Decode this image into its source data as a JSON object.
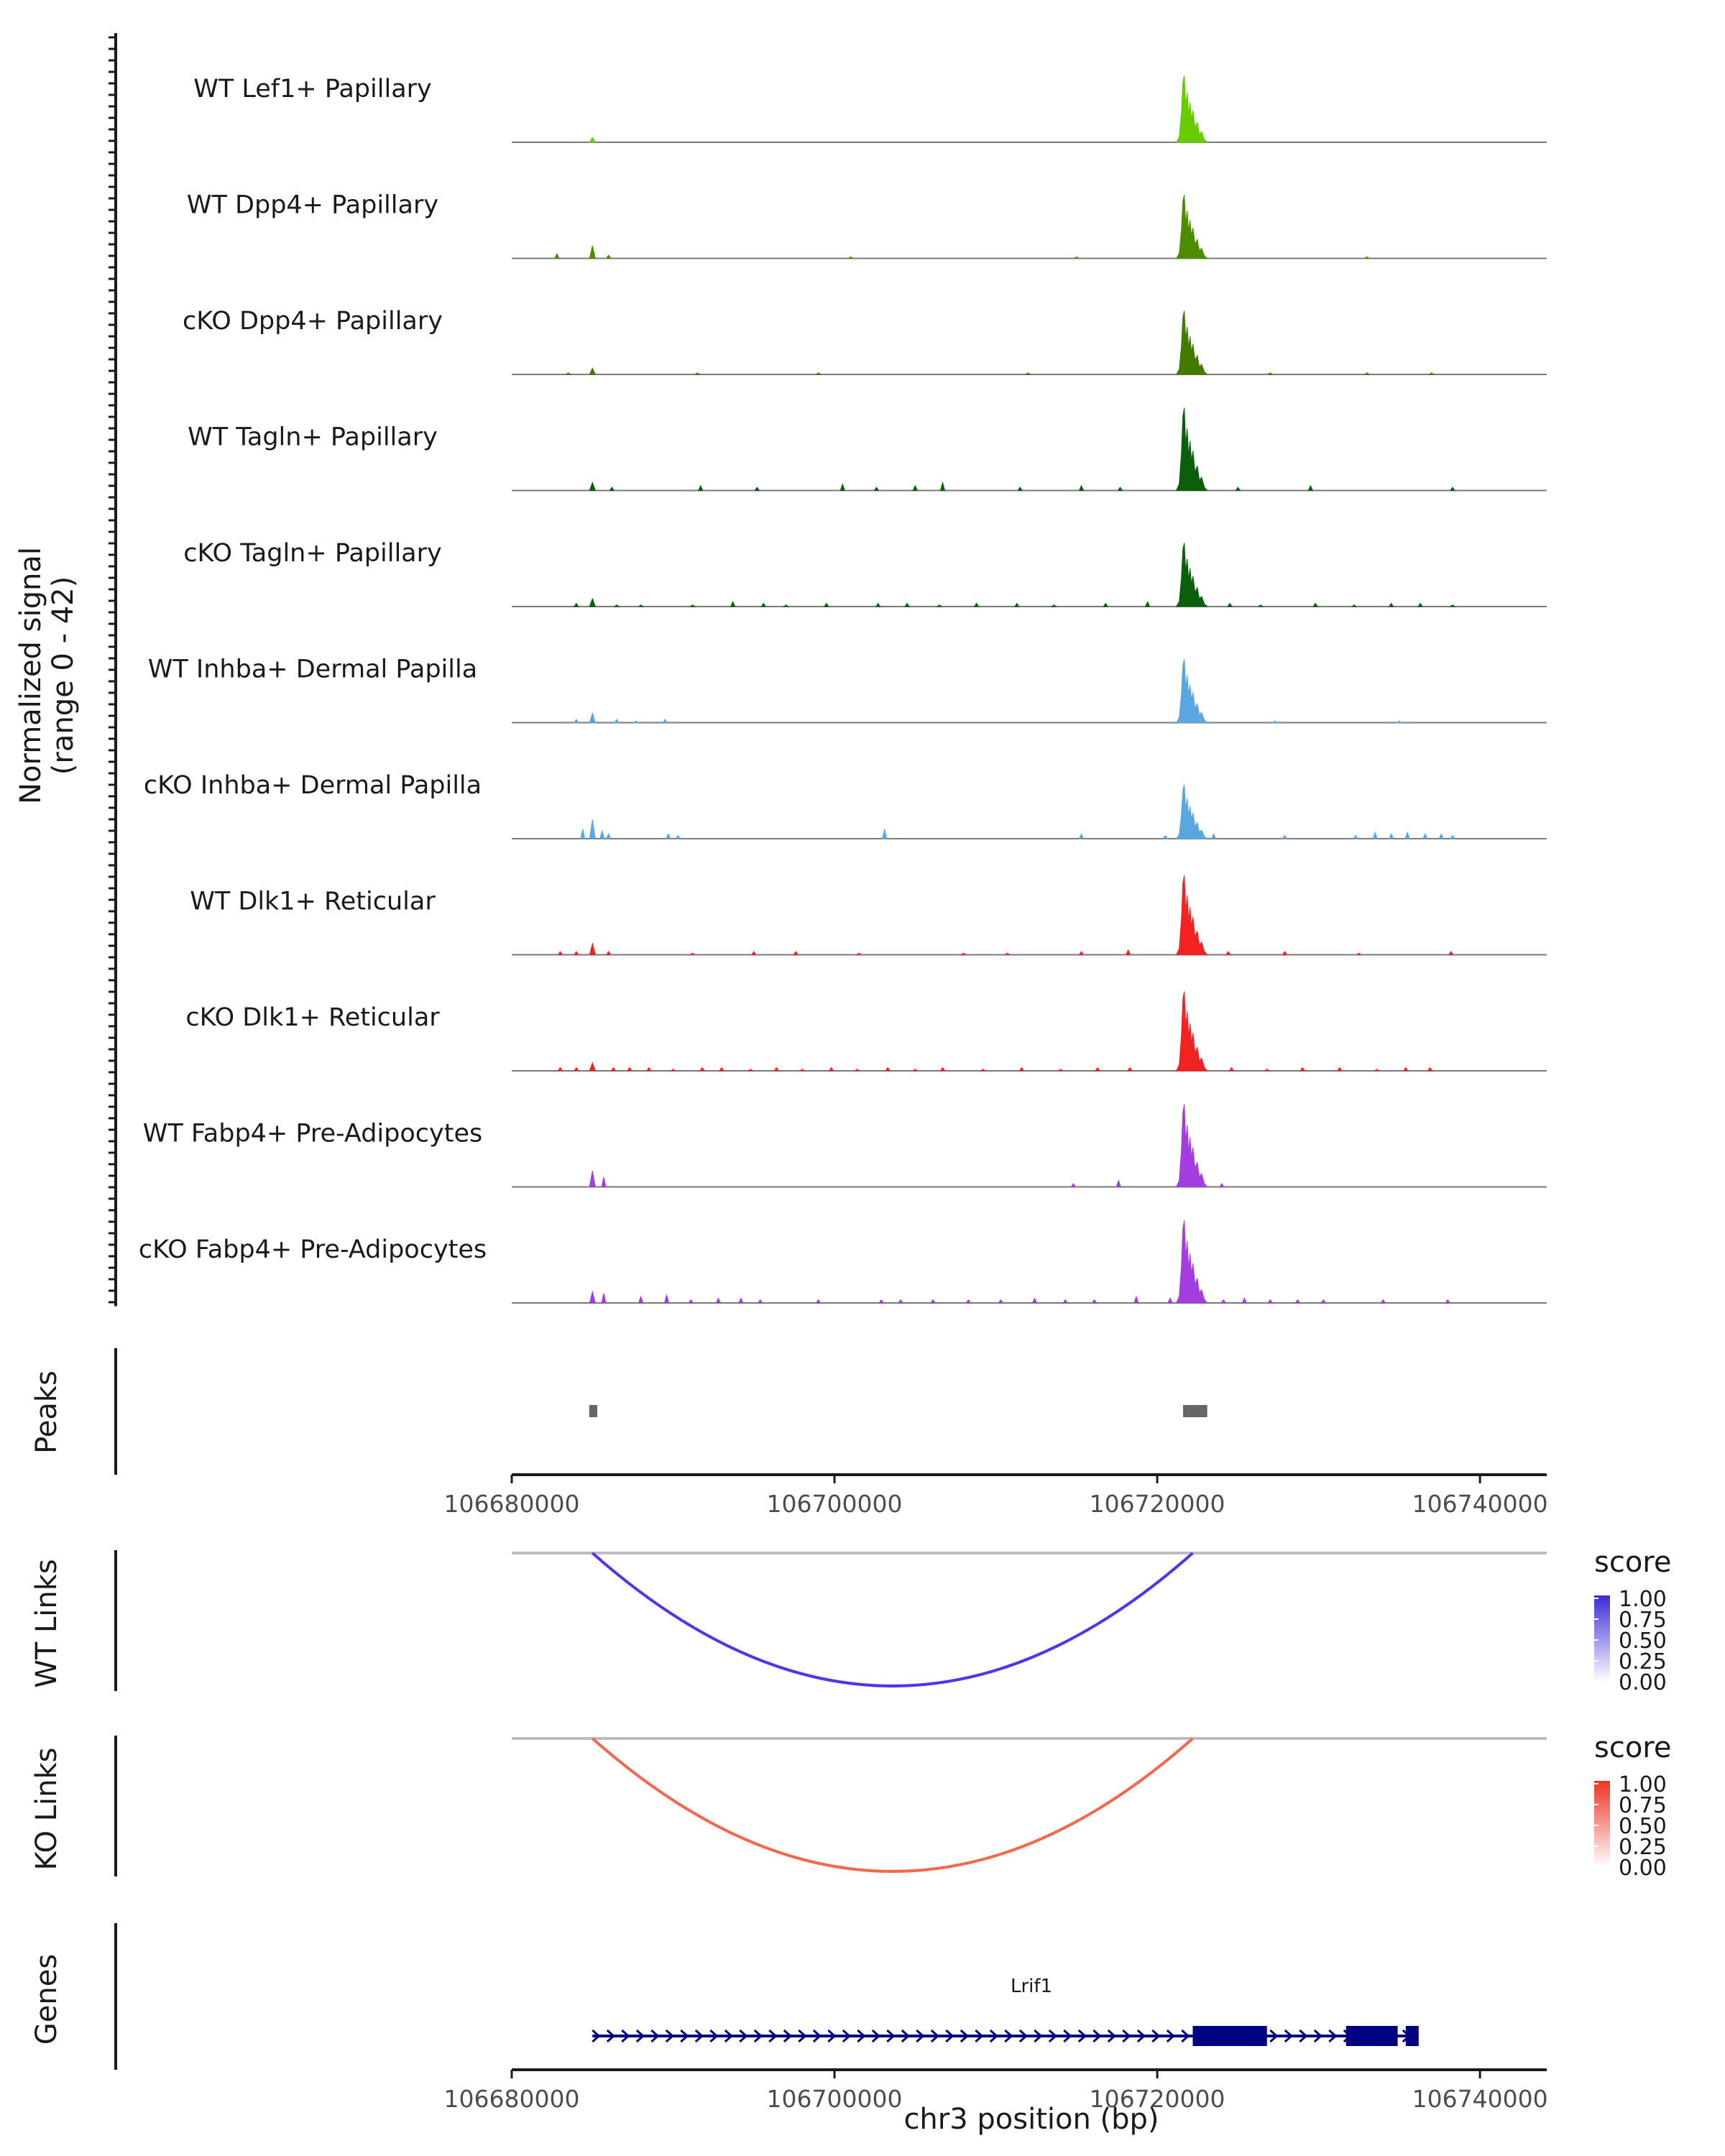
{
  "chart_data": {
    "type": "area",
    "title": "",
    "region": {
      "chromosome": "chr3",
      "xlim": [
        106680000,
        106742000
      ]
    },
    "xlabel": "chr3 position (bp)",
    "x_ticks": [
      106680000,
      106700000,
      106720000,
      106740000
    ],
    "x_tick_labels": [
      "106680000",
      "106700000",
      "106720000",
      "106740000"
    ],
    "coverage": {
      "ylabel_line1": "Normalized signal",
      "ylabel_line2": "(range 0 - 42)",
      "ylim": [
        0,
        42
      ],
      "series": [
        {
          "name": "WT Lef1+ Papillary",
          "color": "#66cc00",
          "main_peak": [
            106721900,
            42
          ],
          "promoter_peak": [
            106685000,
            3
          ],
          "scatter_peaks": []
        },
        {
          "name": "WT Dpp4+ Papillary",
          "color": "#4d8c00",
          "main_peak": [
            106721900,
            40
          ],
          "promoter_peak": [
            106685000,
            8
          ],
          "scatter_peaks": [
            [
              106682800,
              3
            ],
            [
              106686000,
              2
            ],
            [
              106701000,
              1
            ],
            [
              106715000,
              1
            ],
            [
              106733000,
              1
            ]
          ]
        },
        {
          "name": "cKO Dpp4+ Papillary",
          "color": "#447a00",
          "main_peak": [
            106721900,
            40
          ],
          "promoter_peak": [
            106685000,
            4
          ],
          "scatter_peaks": [
            [
              106683500,
              1
            ],
            [
              106691500,
              1
            ],
            [
              106699000,
              1
            ],
            [
              106712000,
              1
            ],
            [
              106727000,
              1
            ],
            [
              106733000,
              1
            ],
            [
              106737000,
              1
            ]
          ]
        },
        {
          "name": "WT Tagln+ Papillary",
          "color": "#0b5e0b",
          "main_peak": [
            106721900,
            52
          ],
          "promoter_peak": [
            106685000,
            5
          ],
          "scatter_peaks": [
            [
              106686200,
              2
            ],
            [
              106691700,
              3
            ],
            [
              106695200,
              2
            ],
            [
              106700500,
              4
            ],
            [
              106702600,
              2
            ],
            [
              106705000,
              3
            ],
            [
              106706700,
              5
            ],
            [
              106711500,
              2
            ],
            [
              106715300,
              3
            ],
            [
              106717700,
              2
            ],
            [
              106725000,
              2
            ],
            [
              106729500,
              3
            ],
            [
              106738300,
              2
            ]
          ]
        },
        {
          "name": "cKO Tagln+ Papillary",
          "color": "#0b5e0b",
          "main_peak": [
            106721900,
            40
          ],
          "promoter_peak": [
            106685000,
            5
          ],
          "scatter_peaks": [
            [
              106684000,
              2
            ],
            [
              106686500,
              1
            ],
            [
              106688000,
              1
            ],
            [
              106691200,
              1
            ],
            [
              106693700,
              3
            ],
            [
              106695600,
              2
            ],
            [
              106697000,
              1
            ],
            [
              106699500,
              2
            ],
            [
              106702700,
              2
            ],
            [
              106704500,
              2
            ],
            [
              106706500,
              1
            ],
            [
              106708800,
              2
            ],
            [
              106711300,
              2
            ],
            [
              106713600,
              1
            ],
            [
              106716800,
              2
            ],
            [
              106719400,
              3
            ],
            [
              106724500,
              2
            ],
            [
              106726400,
              1
            ],
            [
              106729800,
              2
            ],
            [
              106732200,
              1
            ],
            [
              106734500,
              2
            ],
            [
              106736300,
              2
            ],
            [
              106738300,
              1
            ]
          ]
        },
        {
          "name": "WT Inhba+ Dermal Papilla",
          "color": "#5aa6e0",
          "main_peak": [
            106721900,
            40
          ],
          "promoter_peak": [
            106685000,
            6
          ],
          "scatter_peaks": [
            [
              106684000,
              2
            ],
            [
              106686500,
              2
            ],
            [
              106687700,
              1
            ],
            [
              106689500,
              2
            ],
            [
              106727300,
              1
            ],
            [
              106735000,
              1
            ]
          ]
        },
        {
          "name": "cKO Inhba+ Dermal Papilla",
          "color": "#5aa6e0",
          "main_peak": [
            106721900,
            34
          ],
          "promoter_peak": [
            106685000,
            12
          ],
          "scatter_peaks": [
            [
              106684400,
              6
            ],
            [
              106685600,
              5
            ],
            [
              106686000,
              3
            ],
            [
              106689700,
              3
            ],
            [
              106690300,
              2
            ],
            [
              106703100,
              6
            ],
            [
              106715300,
              3
            ],
            [
              106720500,
              2
            ],
            [
              106723500,
              3
            ],
            [
              106727900,
              2
            ],
            [
              106732300,
              2
            ],
            [
              106733500,
              4
            ],
            [
              106734500,
              3
            ],
            [
              106735500,
              4
            ],
            [
              106736600,
              3
            ],
            [
              106737600,
              3
            ],
            [
              106738300,
              2
            ]
          ]
        },
        {
          "name": "WT Dlk1+ Reticular",
          "color": "#f22222",
          "main_peak": [
            106721900,
            50
          ],
          "promoter_peak": [
            106685000,
            7
          ],
          "scatter_peaks": [
            [
              106683000,
              2
            ],
            [
              106684000,
              2
            ],
            [
              106686000,
              2
            ],
            [
              106691200,
              1
            ],
            [
              106695000,
              2
            ],
            [
              106697600,
              2
            ],
            [
              106701500,
              1
            ],
            [
              106708000,
              1
            ],
            [
              106710700,
              1
            ],
            [
              106715300,
              2
            ],
            [
              106718200,
              3
            ],
            [
              106724400,
              2
            ],
            [
              106727900,
              2
            ],
            [
              106732500,
              1
            ],
            [
              106738200,
              2
            ]
          ]
        },
        {
          "name": "cKO Dlk1+ Reticular",
          "color": "#f22222",
          "main_peak": [
            106721900,
            50
          ],
          "promoter_peak": [
            106685000,
            5
          ],
          "scatter_peaks": [
            [
              106683000,
              2
            ],
            [
              106684000,
              2
            ],
            [
              106686300,
              2
            ],
            [
              106687300,
              2
            ],
            [
              106688500,
              2
            ],
            [
              106690000,
              1
            ],
            [
              106691800,
              2
            ],
            [
              106693000,
              2
            ],
            [
              106694800,
              1
            ],
            [
              106696400,
              2
            ],
            [
              106698000,
              1
            ],
            [
              106699800,
              2
            ],
            [
              106701400,
              1
            ],
            [
              106703300,
              2
            ],
            [
              106705000,
              1
            ],
            [
              106706700,
              2
            ],
            [
              106709200,
              1
            ],
            [
              106711600,
              2
            ],
            [
              106714000,
              1
            ],
            [
              106716300,
              2
            ],
            [
              106718300,
              2
            ],
            [
              106724600,
              2
            ],
            [
              106726800,
              1
            ],
            [
              106729000,
              2
            ],
            [
              106731300,
              2
            ],
            [
              106733600,
              1
            ],
            [
              106735400,
              2
            ],
            [
              106736900,
              2
            ]
          ]
        },
        {
          "name": "WT Fabp4+ Pre-Adipocytes",
          "color": "#a33de0",
          "main_peak": [
            106721900,
            52
          ],
          "promoter_peak": [
            106685000,
            10
          ],
          "scatter_peaks": [
            [
              106685700,
              6
            ],
            [
              106714800,
              2
            ],
            [
              106717600,
              4
            ],
            [
              106724000,
              2
            ]
          ]
        },
        {
          "name": "cKO Fabp4+ Pre-Adipocytes",
          "color": "#a33de0",
          "main_peak": [
            106721900,
            52
          ],
          "promoter_peak": [
            106685000,
            7
          ],
          "scatter_peaks": [
            [
              106685700,
              6
            ],
            [
              106688000,
              4
            ],
            [
              106689600,
              5
            ],
            [
              106691100,
              2
            ],
            [
              106692800,
              3
            ],
            [
              106694200,
              3
            ],
            [
              106695400,
              2
            ],
            [
              106699000,
              2
            ],
            [
              106702900,
              2
            ],
            [
              106704100,
              2
            ],
            [
              106706100,
              2
            ],
            [
              106708300,
              2
            ],
            [
              106710300,
              2
            ],
            [
              106712400,
              3
            ],
            [
              106714300,
              2
            ],
            [
              106716100,
              2
            ],
            [
              106718700,
              4
            ],
            [
              106720800,
              3
            ],
            [
              106724100,
              2
            ],
            [
              106725400,
              3
            ],
            [
              106727000,
              2
            ],
            [
              106728700,
              2
            ],
            [
              106730300,
              2
            ],
            [
              106734000,
              2
            ],
            [
              106738000,
              2
            ]
          ]
        }
      ]
    },
    "peaks": {
      "label": "Peaks",
      "regions": [
        [
          106684800,
          106685300
        ],
        [
          106721600,
          106723100
        ]
      ],
      "color": "#666666"
    },
    "links": [
      {
        "label": "WT Links",
        "start": 106685000,
        "end": 106722200,
        "score": 1.0,
        "color": "#5533ee",
        "legend_title": "score",
        "legend_ticks": [
          "1.00",
          "0.75",
          "0.50",
          "0.25",
          "0.00"
        ],
        "gradient_high": "#3b2bd9",
        "gradient_low": "#ffffff"
      },
      {
        "label": "KO Links",
        "start": 106685000,
        "end": 106722200,
        "score": 0.75,
        "color": "#f4694c",
        "legend_title": "score",
        "legend_ticks": [
          "1.00",
          "0.75",
          "0.50",
          "0.25",
          "0.00"
        ],
        "gradient_high": "#ee3322",
        "gradient_low": "#ffffff"
      }
    ],
    "genes": {
      "label": "Genes",
      "name": "Lrif1",
      "color": "#000080",
      "start": 106685000,
      "end": 106736200,
      "strand": "+",
      "exons": [
        [
          106722200,
          106726800
        ],
        [
          106731700,
          106734900
        ],
        [
          106735400,
          106736200
        ]
      ]
    }
  }
}
